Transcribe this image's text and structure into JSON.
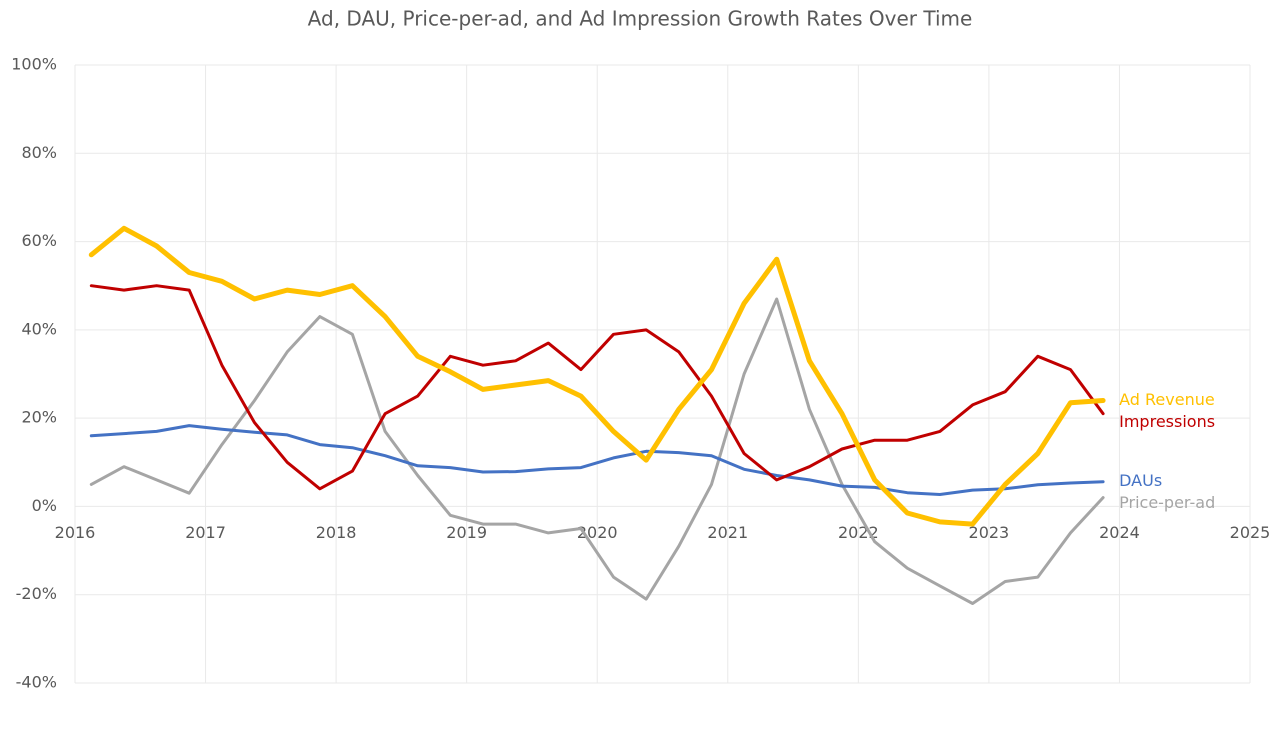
{
  "chart_data": {
    "type": "line",
    "title": "Ad, DAU, Price-per-ad, and Ad Impression Growth Rates Over Time",
    "x": [
      2016.125,
      2016.375,
      2016.625,
      2016.875,
      2017.125,
      2017.375,
      2017.625,
      2017.875,
      2018.125,
      2018.375,
      2018.625,
      2018.875,
      2019.125,
      2019.375,
      2019.625,
      2019.875,
      2020.125,
      2020.375,
      2020.625,
      2020.875,
      2021.125,
      2021.375,
      2021.625,
      2021.875,
      2022.125,
      2022.375,
      2022.625,
      2022.875,
      2023.125,
      2023.375,
      2023.625,
      2023.875
    ],
    "series": [
      {
        "name": "Ad Revenue",
        "color": "#ffc000",
        "values": [
          57,
          63,
          59,
          53,
          51,
          47,
          49,
          48,
          50,
          43,
          34,
          30.5,
          26.5,
          27.5,
          28.5,
          25,
          17,
          10.5,
          22,
          31,
          46,
          56,
          33,
          21,
          6,
          -1.5,
          -3.5,
          -4,
          5,
          12,
          23.5,
          24
        ]
      },
      {
        "name": "Impressions",
        "color": "#c00000",
        "values": [
          50,
          49,
          50,
          49,
          32,
          19,
          10,
          4,
          8,
          21,
          25,
          34,
          32,
          33,
          37,
          31,
          39,
          40,
          35,
          25,
          12,
          6,
          9,
          13,
          15,
          15,
          17,
          23,
          26,
          34,
          31,
          21
        ]
      },
      {
        "name": "DAUs",
        "color": "#4472c4",
        "values": [
          16,
          16.5,
          17,
          18.3,
          17.5,
          16.8,
          16.2,
          14,
          13.3,
          11.5,
          9.2,
          8.8,
          7.8,
          7.9,
          8.5,
          8.8,
          11,
          12.5,
          12.2,
          11.5,
          8.4,
          7,
          6,
          4.6,
          4.3,
          3.1,
          2.7,
          3.7,
          4,
          4.9,
          5.3,
          5.6
        ]
      },
      {
        "name": "Price-per-ad",
        "color": "#a5a5a5",
        "values": [
          5,
          9,
          6,
          3,
          14,
          24,
          35,
          43,
          39,
          17,
          7,
          -2,
          -4,
          -4,
          -6,
          -5,
          -16,
          -21,
          -9,
          5,
          30,
          47,
          22,
          5,
          -8,
          -14,
          -18,
          -22,
          -17,
          -16,
          -6,
          2
        ]
      }
    ],
    "xlim": [
      2016,
      2025
    ],
    "xticks": [
      2016,
      2017,
      2018,
      2019,
      2020,
      2021,
      2022,
      2023,
      2024,
      2025
    ],
    "ylim": [
      -40,
      100
    ],
    "yticks": [
      {
        "value": -40,
        "label": "-40%"
      },
      {
        "value": -20,
        "label": "-20%"
      },
      {
        "value": 0,
        "label": "0%"
      },
      {
        "value": 20,
        "label": "20%"
      },
      {
        "value": 40,
        "label": "40%"
      },
      {
        "value": 60,
        "label": "60%"
      },
      {
        "value": 80,
        "label": "80%"
      },
      {
        "value": 100,
        "label": "100%"
      }
    ],
    "grid": true
  }
}
